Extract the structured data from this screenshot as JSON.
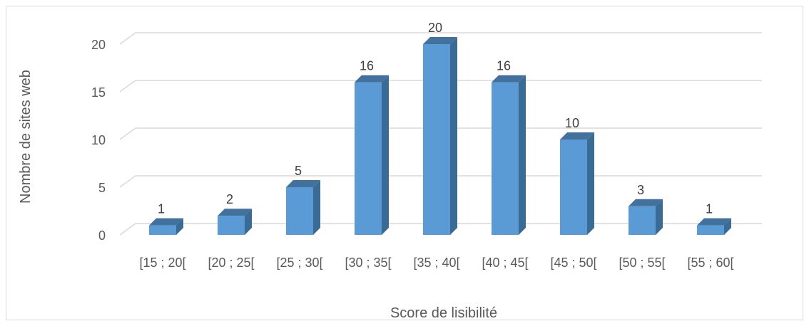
{
  "chart_data": {
    "type": "bar",
    "style": "3d-column",
    "categories": [
      "[15 ; 20[",
      "[20 ; 25[",
      "[25 ; 30[",
      "[30 ; 35[",
      "[35 ; 40[",
      "[40 ; 45[",
      "[45 ; 50[",
      "[50 ; 55[",
      "[55 ; 60["
    ],
    "values": [
      1,
      2,
      5,
      16,
      20,
      16,
      10,
      3,
      1
    ],
    "title": "",
    "xlabel": "Score de lisibilité",
    "ylabel": "Nombre de sites web",
    "ylim": [
      0,
      20
    ],
    "yticks": [
      0,
      5,
      10,
      15,
      20
    ],
    "grid": true,
    "legend": "none",
    "colors": {
      "front": "#5b9bd5",
      "side": "#3a6a96",
      "top": "#41719c",
      "grid": "#d9d9d9",
      "text": "#595959"
    }
  }
}
